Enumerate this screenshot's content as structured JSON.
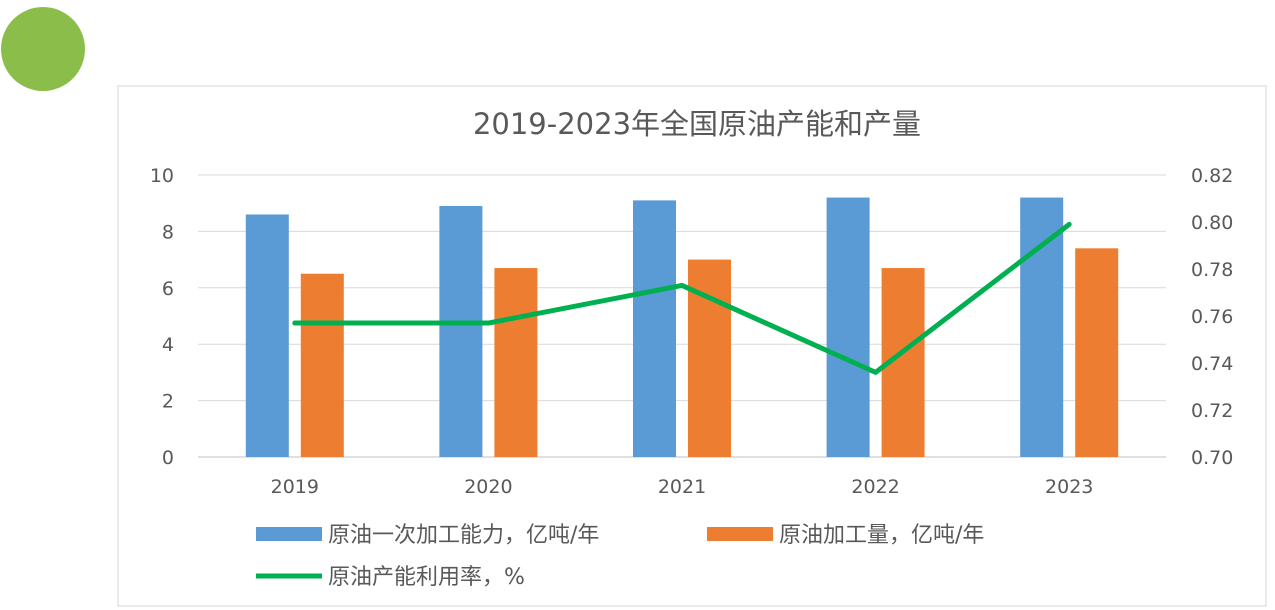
{
  "chart_data": {
    "type": "bar",
    "title": "2019-2023年全国原油产能和产量",
    "categories": [
      "2019",
      "2020",
      "2021",
      "2022",
      "2023"
    ],
    "series": [
      {
        "name": "原油一次加工能力，亿吨/年",
        "type": "bar",
        "axis": "left",
        "color": "#5b9bd5",
        "values": [
          8.6,
          8.9,
          9.1,
          9.2,
          9.2
        ]
      },
      {
        "name": "原油加工量，亿吨/年",
        "type": "bar",
        "axis": "left",
        "color": "#ed7d31",
        "values": [
          6.5,
          6.7,
          7.0,
          6.7,
          7.4
        ]
      },
      {
        "name": "原油产能利用率，%",
        "type": "line",
        "axis": "right",
        "color": "#00b050",
        "values": [
          0.757,
          0.757,
          0.773,
          0.736,
          0.799
        ]
      }
    ],
    "y_left": {
      "min": 0,
      "max": 10,
      "ticks": [
        "0",
        "2",
        "4",
        "6",
        "8",
        "10"
      ]
    },
    "y_right": {
      "min": 0.7,
      "max": 0.82,
      "ticks": [
        "0.70",
        "0.72",
        "0.74",
        "0.76",
        "0.78",
        "0.80",
        "0.82"
      ]
    },
    "grid": true,
    "legend_position": "bottom"
  }
}
